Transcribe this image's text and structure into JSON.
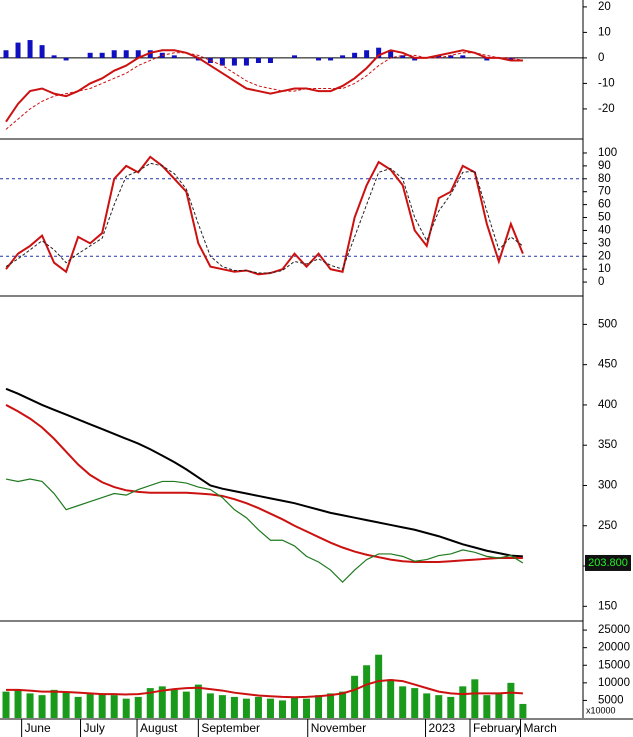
{
  "chart_data": [
    {
      "type": "line",
      "xlim": [
        0,
        48.5
      ],
      "ylim": [
        -31.4,
        22.7
      ],
      "yticks": [
        -20,
        -10,
        0,
        10,
        20
      ],
      "zero_line": 0,
      "series": [
        {
          "type": "bar",
          "color": "#1010c0",
          "values": [
            3,
            6,
            7,
            5,
            1,
            -1,
            0,
            2,
            2,
            3,
            3,
            3,
            3,
            2,
            1,
            0,
            -1,
            -2,
            -3,
            -3,
            -3,
            -2,
            -2,
            0,
            1,
            0,
            -1,
            -1,
            1,
            2,
            3,
            4,
            3,
            1,
            -1,
            0,
            1,
            1,
            1,
            0,
            -1,
            0,
            -1,
            0
          ]
        },
        {
          "type": "line",
          "color": "#cc1111",
          "width": 2,
          "values": [
            -25,
            -18,
            -13,
            -12,
            -14,
            -15,
            -13,
            -10,
            -8,
            -5,
            -3,
            0,
            2,
            3,
            3,
            2,
            0,
            -3,
            -6,
            -9,
            -12,
            -13,
            -14,
            -13,
            -12,
            -12,
            -13,
            -13,
            -11,
            -8,
            -4,
            1,
            3,
            2,
            0,
            0,
            1,
            2,
            3,
            2,
            0,
            0,
            -1,
            -1
          ]
        },
        {
          "type": "line",
          "color": "#cc1111",
          "width": 1,
          "dashed": true,
          "values": [
            -28,
            -24,
            -20,
            -17,
            -15,
            -14,
            -13,
            -12,
            -10,
            -8,
            -6,
            -3,
            -1,
            1,
            2,
            2,
            1,
            -1,
            -3,
            -6,
            -9,
            -11,
            -12,
            -13,
            -13,
            -12,
            -12,
            -12,
            -12,
            -10,
            -7,
            -3,
            0,
            1,
            1,
            0,
            0,
            1,
            2,
            2,
            1,
            0,
            0,
            -1
          ]
        }
      ]
    },
    {
      "type": "line",
      "xlim": [
        0,
        48.5
      ],
      "ylim": [
        -10,
        108.5
      ],
      "yticks": [
        0,
        10,
        20,
        30,
        40,
        50,
        60,
        70,
        80,
        90,
        100
      ],
      "hlines": [
        80,
        20
      ],
      "series": [
        {
          "type": "line",
          "color": "#cc1111",
          "width": 2,
          "values": [
            10,
            22,
            28,
            36,
            15,
            8,
            35,
            30,
            38,
            80,
            90,
            85,
            97,
            90,
            80,
            70,
            30,
            12,
            10,
            8,
            9,
            6,
            7,
            10,
            22,
            12,
            22,
            10,
            8,
            50,
            75,
            93,
            87,
            75,
            40,
            28,
            65,
            70,
            90,
            85,
            45,
            16,
            45,
            22
          ]
        },
        {
          "type": "line",
          "color": "#222222",
          "width": 1,
          "dashed": true,
          "values": [
            12,
            18,
            25,
            32,
            25,
            15,
            22,
            28,
            34,
            60,
            82,
            86,
            92,
            90,
            84,
            72,
            45,
            20,
            12,
            9,
            9,
            7,
            7,
            9,
            16,
            14,
            18,
            13,
            10,
            35,
            60,
            85,
            88,
            80,
            50,
            32,
            55,
            68,
            85,
            86,
            55,
            25,
            35,
            28
          ]
        }
      ]
    },
    {
      "type": "line",
      "xlim": [
        0,
        48.5
      ],
      "ylim": [
        133,
        534
      ],
      "yticks": [
        150,
        200,
        250,
        300,
        350,
        400,
        450,
        500
      ],
      "last_label": {
        "value": 203.8,
        "label": "203.800"
      },
      "series": [
        {
          "type": "line",
          "color": "#000000",
          "width": 2,
          "values": [
            420,
            414,
            407,
            400,
            394,
            388,
            382,
            376,
            370,
            364,
            358,
            352,
            345,
            337,
            329,
            320,
            310,
            300,
            296,
            293,
            290,
            287,
            284,
            281,
            278,
            274,
            270,
            266,
            263,
            260,
            257,
            254,
            251,
            248,
            245,
            241,
            237,
            232,
            227,
            223,
            219,
            216,
            213,
            212
          ]
        },
        {
          "type": "line",
          "color": "#cc1111",
          "width": 2,
          "values": [
            400,
            392,
            383,
            372,
            358,
            342,
            326,
            313,
            304,
            298,
            294,
            292,
            291,
            291,
            291,
            291,
            290,
            289,
            287,
            283,
            278,
            272,
            265,
            258,
            250,
            243,
            236,
            229,
            223,
            218,
            214,
            211,
            208,
            206,
            205,
            205,
            205,
            206,
            207,
            208,
            209,
            210,
            210,
            210
          ]
        },
        {
          "type": "line",
          "color": "#1f7a1f",
          "width": 1.2,
          "values": [
            308,
            305,
            308,
            305,
            290,
            270,
            275,
            280,
            285,
            290,
            288,
            295,
            300,
            305,
            305,
            303,
            298,
            295,
            285,
            270,
            260,
            245,
            232,
            232,
            225,
            212,
            205,
            195,
            180,
            195,
            208,
            215,
            215,
            212,
            206,
            208,
            213,
            215,
            220,
            217,
            212,
            210,
            213,
            203.8
          ]
        }
      ]
    },
    {
      "type": "bar",
      "xlim": [
        0,
        48.5
      ],
      "ylim": [
        0,
        27300
      ],
      "yticks": [
        5000,
        10000,
        15000,
        20000,
        25000
      ],
      "y_unit_label": "x10000",
      "xticks": [
        {
          "value": 1.8,
          "label": "June"
        },
        {
          "value": 6.7,
          "label": "July"
        },
        {
          "value": 11.4,
          "label": "August"
        },
        {
          "value": 16.5,
          "label": "September"
        },
        {
          "value": 25.6,
          "label": "November"
        },
        {
          "value": 35.4,
          "label": "2023"
        },
        {
          "value": 39.1,
          "label": "February"
        },
        {
          "value": 43.3,
          "label": "March"
        }
      ],
      "series": [
        {
          "type": "bar",
          "color": "#1a9a1a",
          "values": [
            7500,
            8200,
            7000,
            6500,
            8000,
            7200,
            6000,
            6800,
            7000,
            6500,
            5500,
            6000,
            8500,
            9000,
            8000,
            7500,
            9500,
            7000,
            6500,
            6000,
            5500,
            6000,
            5500,
            5000,
            6000,
            5500,
            6500,
            7000,
            7500,
            12000,
            15000,
            18000,
            11000,
            9000,
            8500,
            7000,
            6500,
            6000,
            9000,
            11000,
            6500,
            7000,
            10000,
            4000
          ]
        },
        {
          "type": "line",
          "color": "#cc1111",
          "width": 2,
          "values": [
            8000,
            8000,
            7800,
            7500,
            7500,
            7400,
            7200,
            7000,
            6800,
            6800,
            6700,
            6800,
            7200,
            7800,
            8200,
            8500,
            8600,
            8200,
            7800,
            7200,
            6800,
            6400,
            6200,
            6000,
            5900,
            6000,
            6200,
            6500,
            7000,
            8000,
            9500,
            10500,
            10800,
            10500,
            9500,
            8500,
            7500,
            7000,
            6800,
            7000,
            7000,
            7000,
            7200,
            7000
          ]
        }
      ]
    }
  ]
}
